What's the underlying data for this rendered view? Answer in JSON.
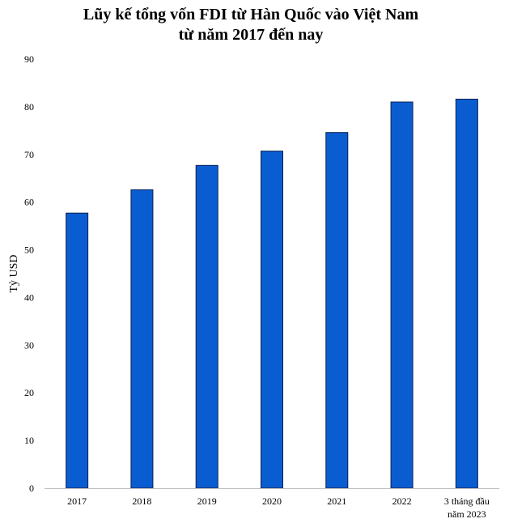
{
  "chart_data": {
    "type": "bar",
    "title_lines": [
      "Lũy kế tổng vốn FDI từ Hàn Quốc vào Việt Nam",
      "từ năm 2017 đến nay"
    ],
    "xlabel": "",
    "ylabel": "Tỷ USD",
    "categories": [
      [
        "2017"
      ],
      [
        "2018"
      ],
      [
        "2019"
      ],
      [
        "2020"
      ],
      [
        "2021"
      ],
      [
        "2022"
      ],
      [
        "3 tháng đầu",
        "năm 2023"
      ]
    ],
    "values": [
      57.7,
      62.6,
      67.7,
      70.7,
      74.6,
      81.0,
      81.6
    ],
    "ylim": [
      0,
      90
    ],
    "yticks": [
      0,
      10,
      20,
      30,
      40,
      50,
      60,
      70,
      80,
      90
    ],
    "grid": false,
    "legend": "none",
    "colors": {
      "bar_fill": "#0a5dd1",
      "bar_stroke": "#0a1f4f",
      "axis": "#bfbfbf"
    }
  }
}
